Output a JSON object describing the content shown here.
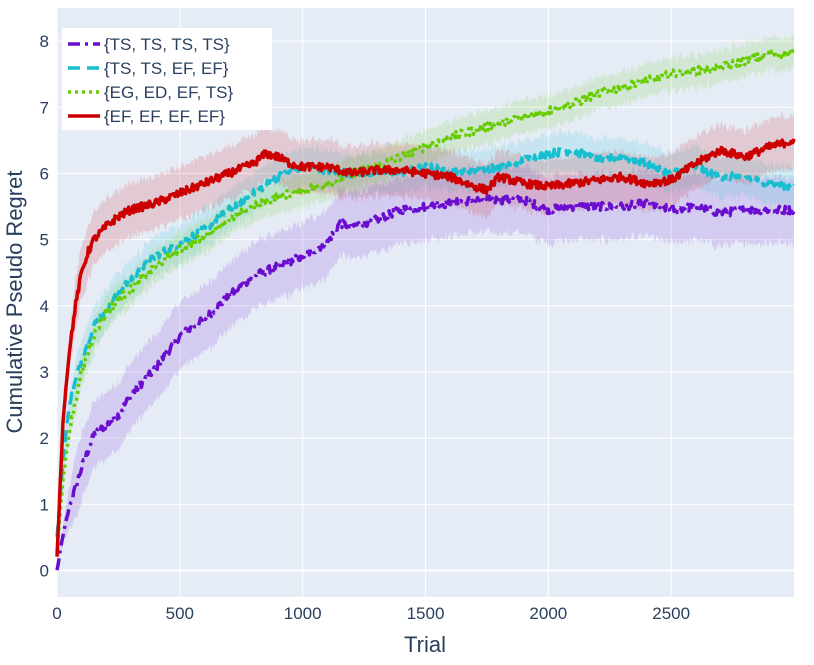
{
  "chart_data": {
    "type": "line",
    "xlabel": "Trial",
    "ylabel": "Cumulative Pseudo Regret",
    "xlim": [
      0,
      3000
    ],
    "ylim": [
      -0.4,
      8.5
    ],
    "x_ticks": [
      0,
      500,
      1000,
      1500,
      2000,
      2500
    ],
    "y_ticks": [
      0,
      1,
      2,
      3,
      4,
      5,
      6,
      7,
      8
    ],
    "grid": true,
    "legend_position": "top-left",
    "colors": {
      "plot_background": "#e5ecf6",
      "grid": "#ffffff"
    },
    "series": [
      {
        "name": "{TS, TS, TS, TS}",
        "color": "#6a0dce",
        "dash": "dashdot",
        "band": 0.5,
        "x": [
          0,
          25,
          50,
          100,
          150,
          200,
          250,
          300,
          400,
          500,
          600,
          700,
          800,
          900,
          1000,
          1100,
          1150,
          1200,
          1300,
          1400,
          1500,
          1600,
          1700,
          1800,
          1900,
          2000,
          2100,
          2200,
          2300,
          2400,
          2500,
          2600,
          2700,
          2800,
          2900,
          3000
        ],
        "y": [
          0.0,
          0.55,
          0.95,
          1.55,
          2.05,
          2.2,
          2.35,
          2.65,
          3.05,
          3.55,
          3.8,
          4.15,
          4.45,
          4.6,
          4.75,
          4.95,
          5.25,
          5.2,
          5.3,
          5.45,
          5.5,
          5.55,
          5.6,
          5.6,
          5.6,
          5.45,
          5.5,
          5.5,
          5.5,
          5.55,
          5.45,
          5.5,
          5.4,
          5.45,
          5.45,
          5.45
        ]
      },
      {
        "name": "{TS, TS, EF, EF}",
        "color": "#17becf",
        "dash": "dash",
        "band": 0.3,
        "x": [
          0,
          25,
          50,
          100,
          150,
          200,
          250,
          300,
          400,
          500,
          600,
          700,
          800,
          900,
          1000,
          1100,
          1200,
          1300,
          1400,
          1500,
          1600,
          1700,
          1800,
          1900,
          2000,
          2100,
          2200,
          2300,
          2400,
          2500,
          2600,
          2700,
          2800,
          2900,
          3000
        ],
        "y": [
          0.5,
          1.7,
          2.5,
          3.2,
          3.7,
          3.95,
          4.2,
          4.4,
          4.75,
          4.95,
          5.15,
          5.45,
          5.7,
          5.95,
          6.1,
          6.05,
          6.0,
          6.0,
          6.0,
          6.1,
          6.05,
          6.05,
          6.1,
          6.2,
          6.3,
          6.35,
          6.2,
          6.25,
          6.15,
          6.0,
          6.1,
          5.95,
          5.95,
          5.85,
          5.8
        ]
      },
      {
        "name": "{EG, ED, EF, TS}",
        "color": "#66cc00",
        "dash": "dot",
        "band": 0.25,
        "x": [
          0,
          25,
          50,
          100,
          150,
          200,
          250,
          300,
          400,
          500,
          600,
          700,
          800,
          900,
          1000,
          1100,
          1200,
          1300,
          1400,
          1500,
          1600,
          1700,
          1800,
          1900,
          2000,
          2100,
          2200,
          2300,
          2400,
          2500,
          2600,
          2700,
          2800,
          2900,
          3000
        ],
        "y": [
          0.3,
          1.4,
          2.1,
          3.0,
          3.55,
          3.9,
          4.1,
          4.25,
          4.6,
          4.85,
          5.05,
          5.3,
          5.5,
          5.65,
          5.75,
          5.85,
          6.0,
          6.1,
          6.25,
          6.4,
          6.55,
          6.65,
          6.75,
          6.85,
          6.95,
          7.05,
          7.2,
          7.3,
          7.4,
          7.5,
          7.55,
          7.6,
          7.7,
          7.8,
          7.82
        ]
      },
      {
        "name": "{EF, EF, EF, EF}",
        "color": "#cc0000",
        "dash": "solid",
        "band": 0.4,
        "x": [
          0,
          25,
          50,
          75,
          100,
          125,
          150,
          200,
          250,
          300,
          400,
          500,
          600,
          700,
          800,
          850,
          900,
          950,
          1000,
          1100,
          1200,
          1300,
          1400,
          1500,
          1600,
          1700,
          1750,
          1800,
          1900,
          2000,
          2100,
          2200,
          2300,
          2400,
          2500,
          2600,
          2700,
          2800,
          2900,
          3000
        ],
        "y": [
          0.2,
          2.3,
          3.3,
          4.0,
          4.5,
          4.8,
          5.0,
          5.2,
          5.35,
          5.45,
          5.55,
          5.7,
          5.85,
          6.0,
          6.15,
          6.3,
          6.25,
          6.15,
          6.1,
          6.1,
          6.0,
          6.05,
          6.05,
          6.0,
          5.95,
          5.8,
          5.75,
          5.95,
          5.85,
          5.8,
          5.85,
          5.9,
          5.95,
          5.85,
          5.9,
          6.15,
          6.35,
          6.25,
          6.4,
          6.5
        ]
      }
    ]
  }
}
